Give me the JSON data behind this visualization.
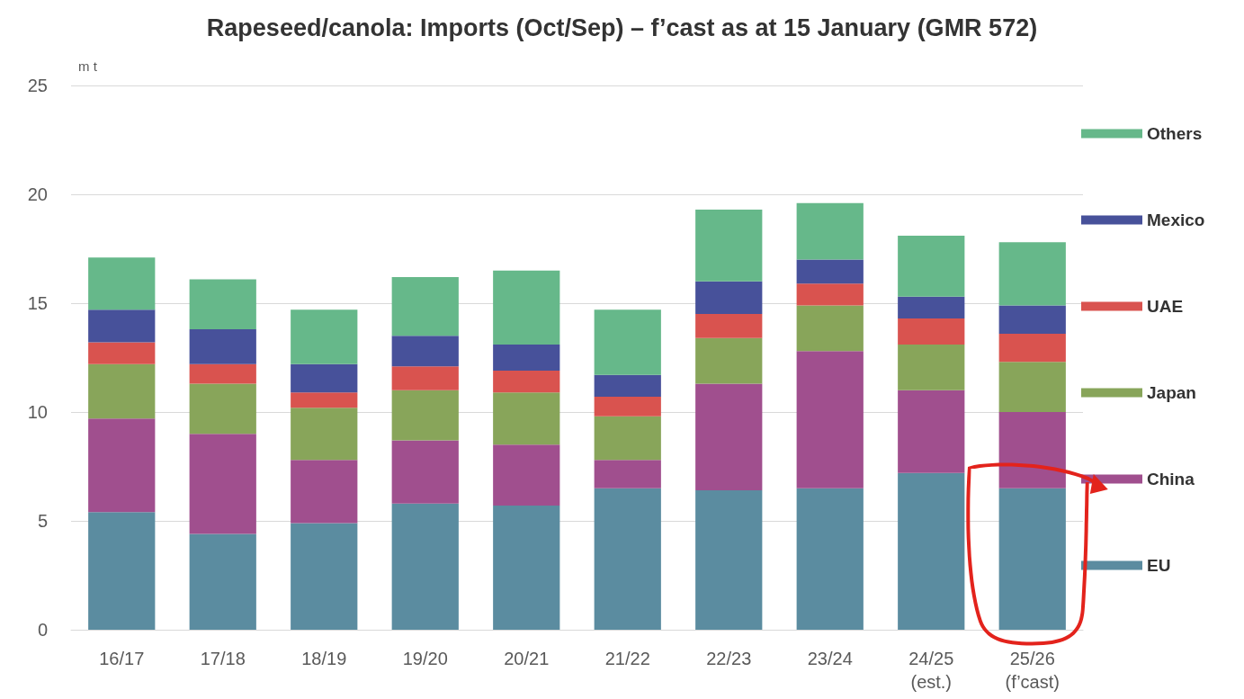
{
  "chart_data": {
    "type": "bar",
    "title": "Rapeseed/canola: Imports (Oct/Sep) – f’cast as at 15 January (GMR 572)",
    "ylabel": "m t",
    "categories": [
      "16/17",
      "17/18",
      "18/19",
      "19/20",
      "20/21",
      "21/22",
      "22/23",
      "23/24",
      "24/25\n(est.)",
      "25/26\n(f’cast)"
    ],
    "series": [
      {
        "name": "EU",
        "color": "#5b8ca0",
        "values": [
          5.4,
          4.4,
          4.9,
          5.8,
          5.7,
          6.5,
          6.4,
          6.5,
          7.2,
          6.5
        ]
      },
      {
        "name": "China",
        "color": "#a04f8e",
        "values": [
          4.3,
          4.6,
          2.9,
          2.9,
          2.8,
          1.3,
          4.9,
          6.3,
          3.8,
          3.5
        ]
      },
      {
        "name": "Japan",
        "color": "#88a55a",
        "values": [
          2.5,
          2.3,
          2.4,
          2.3,
          2.4,
          2.0,
          2.1,
          2.1,
          2.1,
          2.3
        ]
      },
      {
        "name": "UAE",
        "color": "#d9534f",
        "values": [
          1.0,
          0.9,
          0.7,
          1.1,
          1.0,
          0.9,
          1.1,
          1.0,
          1.2,
          1.3
        ]
      },
      {
        "name": "Mexico",
        "color": "#47519a",
        "values": [
          1.5,
          1.6,
          1.3,
          1.4,
          1.2,
          1.0,
          1.5,
          1.1,
          1.0,
          1.3
        ]
      },
      {
        "name": "Others",
        "color": "#66b88a",
        "values": [
          2.4,
          2.3,
          2.5,
          2.7,
          3.4,
          3.0,
          3.3,
          2.6,
          2.8,
          2.9
        ]
      }
    ],
    "stacked": true,
    "ylim": [
      0,
      25
    ],
    "yticks": [
      0,
      5,
      10,
      15,
      20,
      25
    ],
    "grid": "y",
    "legend": "right"
  }
}
